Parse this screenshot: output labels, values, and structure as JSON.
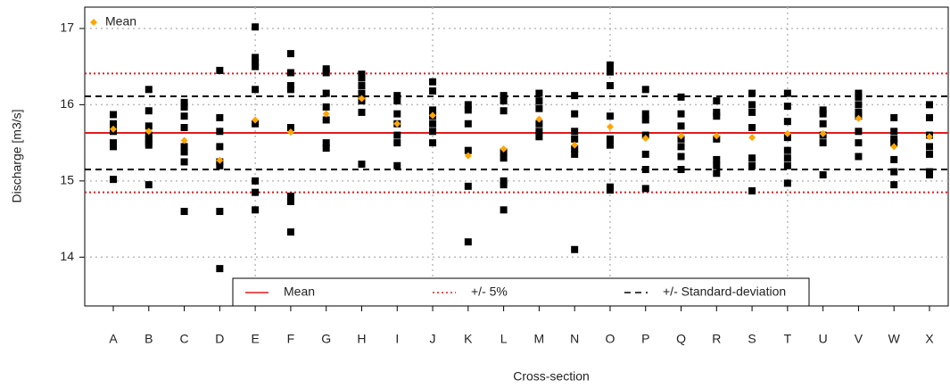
{
  "chart_data": {
    "type": "strip",
    "y_label": "Discharge [m3/s]",
    "x_label": "Cross-section",
    "categories": [
      "A",
      "B",
      "C",
      "D",
      "E",
      "F",
      "G",
      "H",
      "I",
      "J",
      "K",
      "L",
      "M",
      "N",
      "O",
      "P",
      "Q",
      "R",
      "S",
      "T",
      "U",
      "V",
      "W",
      "X"
    ],
    "observations_color": "#000000",
    "observations": [
      [
        15.87,
        15.75,
        15.7,
        15.65,
        15.5,
        15.45,
        15.02
      ],
      [
        16.2,
        15.92,
        15.72,
        15.6,
        15.55,
        15.5,
        15.47,
        14.95
      ],
      [
        16.03,
        15.97,
        15.85,
        15.7,
        15.45,
        15.38,
        15.25,
        14.6
      ],
      [
        16.45,
        15.83,
        15.65,
        15.45,
        15.25,
        15.2,
        14.6,
        13.85
      ],
      [
        17.02,
        16.62,
        16.55,
        16.5,
        16.2,
        15.75,
        15.0,
        14.85,
        14.62
      ],
      [
        16.67,
        16.42,
        16.25,
        16.2,
        15.7,
        14.8,
        14.73,
        14.33
      ],
      [
        16.47,
        16.42,
        16.15,
        15.97,
        15.8,
        15.5,
        15.43
      ],
      [
        16.4,
        16.35,
        16.25,
        16.15,
        16.05,
        15.9,
        15.22
      ],
      [
        16.12,
        16.05,
        15.88,
        15.75,
        15.6,
        15.5,
        15.2
      ],
      [
        16.3,
        16.18,
        15.93,
        15.85,
        15.75,
        15.65,
        15.5
      ],
      [
        16.0,
        15.93,
        15.75,
        15.4,
        14.93,
        14.2
      ],
      [
        16.12,
        16.05,
        15.92,
        15.38,
        15.3,
        15.0,
        14.95,
        14.62
      ],
      [
        16.15,
        16.05,
        15.95,
        15.75,
        15.65,
        15.58
      ],
      [
        16.12,
        15.88,
        15.65,
        15.55,
        15.42,
        15.35,
        14.1
      ],
      [
        16.52,
        16.43,
        16.25,
        15.85,
        15.55,
        15.47,
        14.92,
        14.88
      ],
      [
        16.2,
        15.88,
        15.8,
        15.6,
        15.35,
        15.15,
        14.9
      ],
      [
        16.1,
        15.88,
        15.72,
        15.55,
        15.45,
        15.32,
        15.15
      ],
      [
        16.05,
        15.9,
        15.85,
        15.55,
        15.28,
        15.2,
        15.1
      ],
      [
        16.15,
        16.0,
        15.9,
        15.7,
        15.3,
        15.2,
        14.87
      ],
      [
        16.15,
        15.98,
        15.78,
        15.57,
        15.4,
        15.3,
        15.2,
        14.97
      ],
      [
        15.93,
        15.88,
        15.75,
        15.6,
        15.5,
        15.08
      ],
      [
        16.15,
        16.1,
        16.0,
        15.9,
        15.85,
        15.65,
        15.5,
        15.32
      ],
      [
        15.83,
        15.65,
        15.55,
        15.5,
        15.28,
        15.12,
        14.95
      ],
      [
        16.0,
        15.83,
        15.6,
        15.45,
        15.35,
        15.12,
        15.08
      ]
    ],
    "series": [
      {
        "name": "Mean",
        "color": "#ffa500",
        "values": [
          15.68,
          15.65,
          15.53,
          15.27,
          15.8,
          15.64,
          15.88,
          16.08,
          15.75,
          15.86,
          15.33,
          15.42,
          15.81,
          15.47,
          15.71,
          15.56,
          15.59,
          15.59,
          15.57,
          15.62,
          15.62,
          15.82,
          15.45,
          15.58
        ]
      }
    ],
    "lines": [
      {
        "name": "Mean",
        "color": "#e31a1c",
        "dash": "solid",
        "values": [
          15.63
        ]
      },
      {
        "name": "+/- 5%",
        "color": "#e31a1c",
        "dash": "dotted",
        "values": [
          16.41,
          14.85
        ]
      },
      {
        "name": "+/- Standard-deviation",
        "color": "#000000",
        "dash": "dashed",
        "values": [
          16.11,
          15.15
        ]
      }
    ],
    "ylim": [
      13.36,
      17.28
    ],
    "yticks": [
      14,
      15,
      16,
      17
    ],
    "grid": true,
    "xgrid_step": 5,
    "legend": "top-left",
    "lines_legend": "bottom"
  }
}
